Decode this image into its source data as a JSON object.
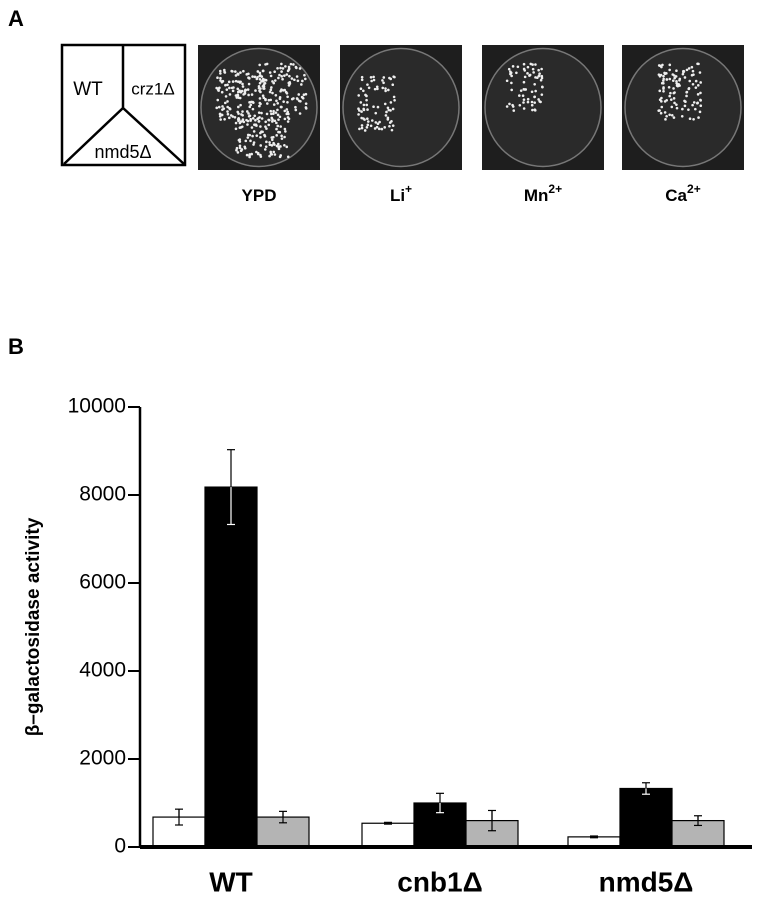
{
  "panel_a": {
    "label": "A",
    "diagram": {
      "wt": "WT",
      "crz1": "crz1Δ",
      "nmd5": "nmd5Δ"
    },
    "plates": [
      {
        "base": "YPD"
      },
      {
        "base": "Li",
        "sup": "+"
      },
      {
        "base": "Mn",
        "sup": "2+"
      },
      {
        "base": "Ca",
        "sup": "2+"
      }
    ]
  },
  "chart_data": {
    "type": "bar",
    "panel_label": "B",
    "y_label": "β–galactosidase activity",
    "categories": [
      "WT",
      "cnb1Δ",
      "nmd5Δ"
    ],
    "series": [
      {
        "color": "#ffffff",
        "values": [
          680,
          540,
          230
        ],
        "errors": [
          180,
          20,
          20
        ]
      },
      {
        "color": "#000000",
        "values": [
          8180,
          1000,
          1330
        ],
        "errors": [
          850,
          220,
          130
        ]
      },
      {
        "color": "#b4b4b4",
        "values": [
          680,
          600,
          600
        ],
        "errors": [
          130,
          230,
          110
        ]
      }
    ],
    "ylim": [
      0,
      10000
    ],
    "yticks": [
      0,
      2000,
      4000,
      6000,
      8000,
      10000
    ],
    "grid": false
  }
}
